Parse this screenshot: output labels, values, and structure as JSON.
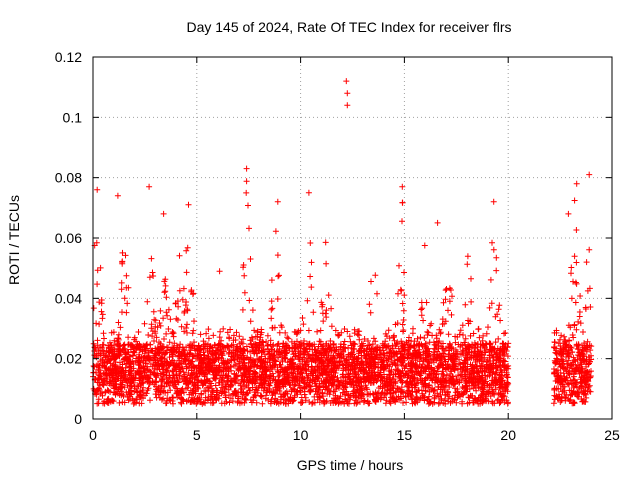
{
  "chart_data": {
    "type": "scatter",
    "title": "Day 145 of 2024, Rate Of TEC Index for receiver flrs",
    "xlabel": "GPS time / hours",
    "ylabel": "ROTI / TECUs",
    "xlim": [
      0,
      25
    ],
    "ylim": [
      0,
      0.12
    ],
    "xticks": [
      0,
      5,
      10,
      15,
      20,
      25
    ],
    "xtick_labels": [
      "0",
      "5",
      "10",
      "15",
      "20",
      "25"
    ],
    "yticks": [
      0,
      0.02,
      0.04,
      0.06,
      0.08,
      0.1,
      0.12
    ],
    "ytick_labels": [
      "0",
      "0.02",
      "0.04",
      "0.06",
      "0.08",
      "0.1",
      "0.12"
    ],
    "grid": true,
    "marker": "+",
    "color": "#ff0000",
    "series": [
      {
        "name": "flrs",
        "coverage_hours": [
          [
            0,
            20
          ],
          [
            22.2,
            24.0
          ]
        ],
        "outliers": [
          {
            "x": 12.2,
            "y": 0.112
          },
          {
            "x": 12.25,
            "y": 0.108
          },
          {
            "x": 12.25,
            "y": 0.104
          },
          {
            "x": 7.4,
            "y": 0.083
          },
          {
            "x": 23.9,
            "y": 0.081
          },
          {
            "x": 0.2,
            "y": 0.076
          },
          {
            "x": 23.3,
            "y": 0.078
          },
          {
            "x": 14.9,
            "y": 0.077
          },
          {
            "x": 2.7,
            "y": 0.077
          },
          {
            "x": 10.4,
            "y": 0.075
          },
          {
            "x": 4.6,
            "y": 0.071
          },
          {
            "x": 19.3,
            "y": 0.072
          },
          {
            "x": 1.2,
            "y": 0.074
          },
          {
            "x": 8.9,
            "y": 0.072
          },
          {
            "x": 6.1,
            "y": 0.049
          },
          {
            "x": 22.9,
            "y": 0.068
          },
          {
            "x": 16.6,
            "y": 0.065
          },
          {
            "x": 3.4,
            "y": 0.068
          }
        ],
        "peaks": [
          {
            "x": 0.2,
            "y": 0.075
          },
          {
            "x": 1.5,
            "y": 0.065
          },
          {
            "x": 2.8,
            "y": 0.055
          },
          {
            "x": 3.5,
            "y": 0.055
          },
          {
            "x": 4.2,
            "y": 0.06
          },
          {
            "x": 4.6,
            "y": 0.07
          },
          {
            "x": 7.4,
            "y": 0.08
          },
          {
            "x": 8.8,
            "y": 0.065
          },
          {
            "x": 10.4,
            "y": 0.075
          },
          {
            "x": 11.2,
            "y": 0.06
          },
          {
            "x": 13.5,
            "y": 0.055
          },
          {
            "x": 14.9,
            "y": 0.075
          },
          {
            "x": 16.0,
            "y": 0.06
          },
          {
            "x": 17.1,
            "y": 0.062
          },
          {
            "x": 18.1,
            "y": 0.06
          },
          {
            "x": 19.3,
            "y": 0.07
          },
          {
            "x": 23.2,
            "y": 0.075
          },
          {
            "x": 23.9,
            "y": 0.065
          }
        ],
        "baseline_range": [
          0.005,
          0.025
        ]
      }
    ]
  }
}
